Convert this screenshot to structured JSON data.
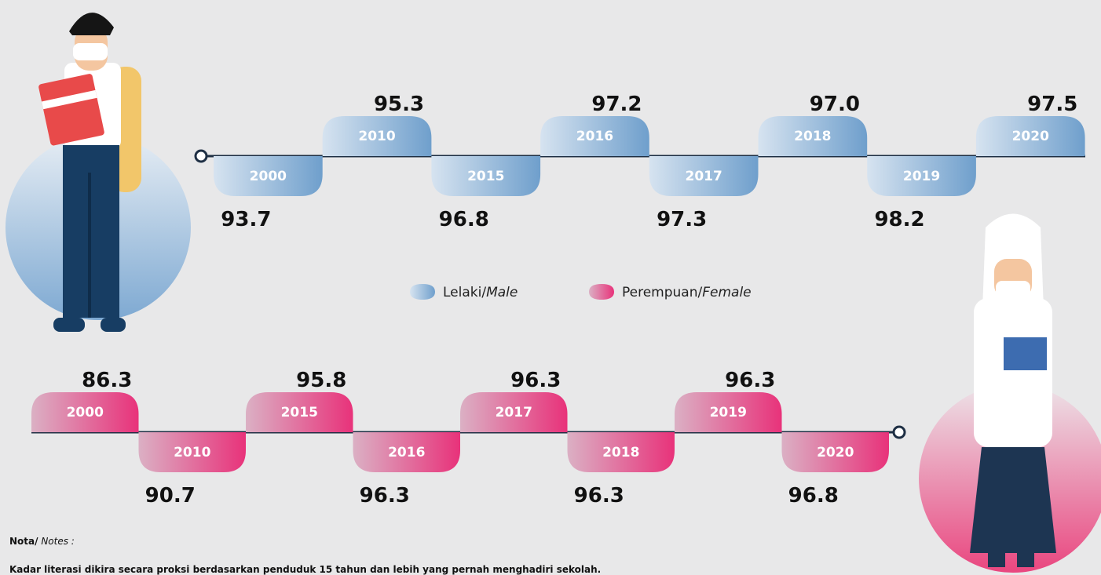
{
  "male": {
    "years": [
      "2000",
      "2010",
      "2015",
      "2016",
      "2017",
      "2018",
      "2019",
      "2020"
    ],
    "values": [
      "93.7",
      "95.3",
      "96.8",
      "97.2",
      "97.3",
      "97.0",
      "98.2",
      "97.5"
    ]
  },
  "female": {
    "years": [
      "2000",
      "2010",
      "2015",
      "2016",
      "2017",
      "2018",
      "2019",
      "2020"
    ],
    "values": [
      "86.3",
      "90.7",
      "95.8",
      "96.3",
      "96.3",
      "96.3",
      "96.3",
      "96.8"
    ]
  },
  "legend": {
    "male": "Lelaki/",
    "male_en": "Male",
    "female": "Perempuan/",
    "female_en": "Female"
  },
  "notes": {
    "label": "Nota/",
    "label_en": " Notes :",
    "text": "Kadar literasi dikira secara proksi berdasarkan penduduk 15 tahun dan lebih yang pernah menghadiri sekolah."
  }
}
